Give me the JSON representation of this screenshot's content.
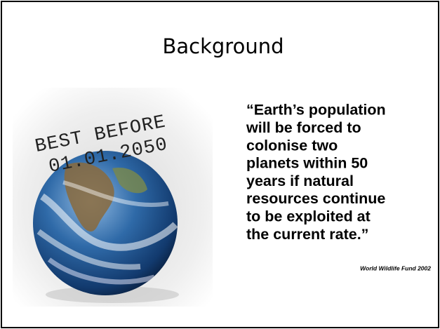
{
  "slide": {
    "title": "Background",
    "stamp": [
      "BEST BEFORE",
      "01.01.2050"
    ],
    "quote": [
      "“Earth’s population",
      "will be forced to",
      "colonise two",
      "planets within 50",
      "years if natural",
      "resources continue",
      "to be exploited at",
      "the current rate.”"
    ],
    "attribution": "World Wildlife Fund 2002"
  }
}
